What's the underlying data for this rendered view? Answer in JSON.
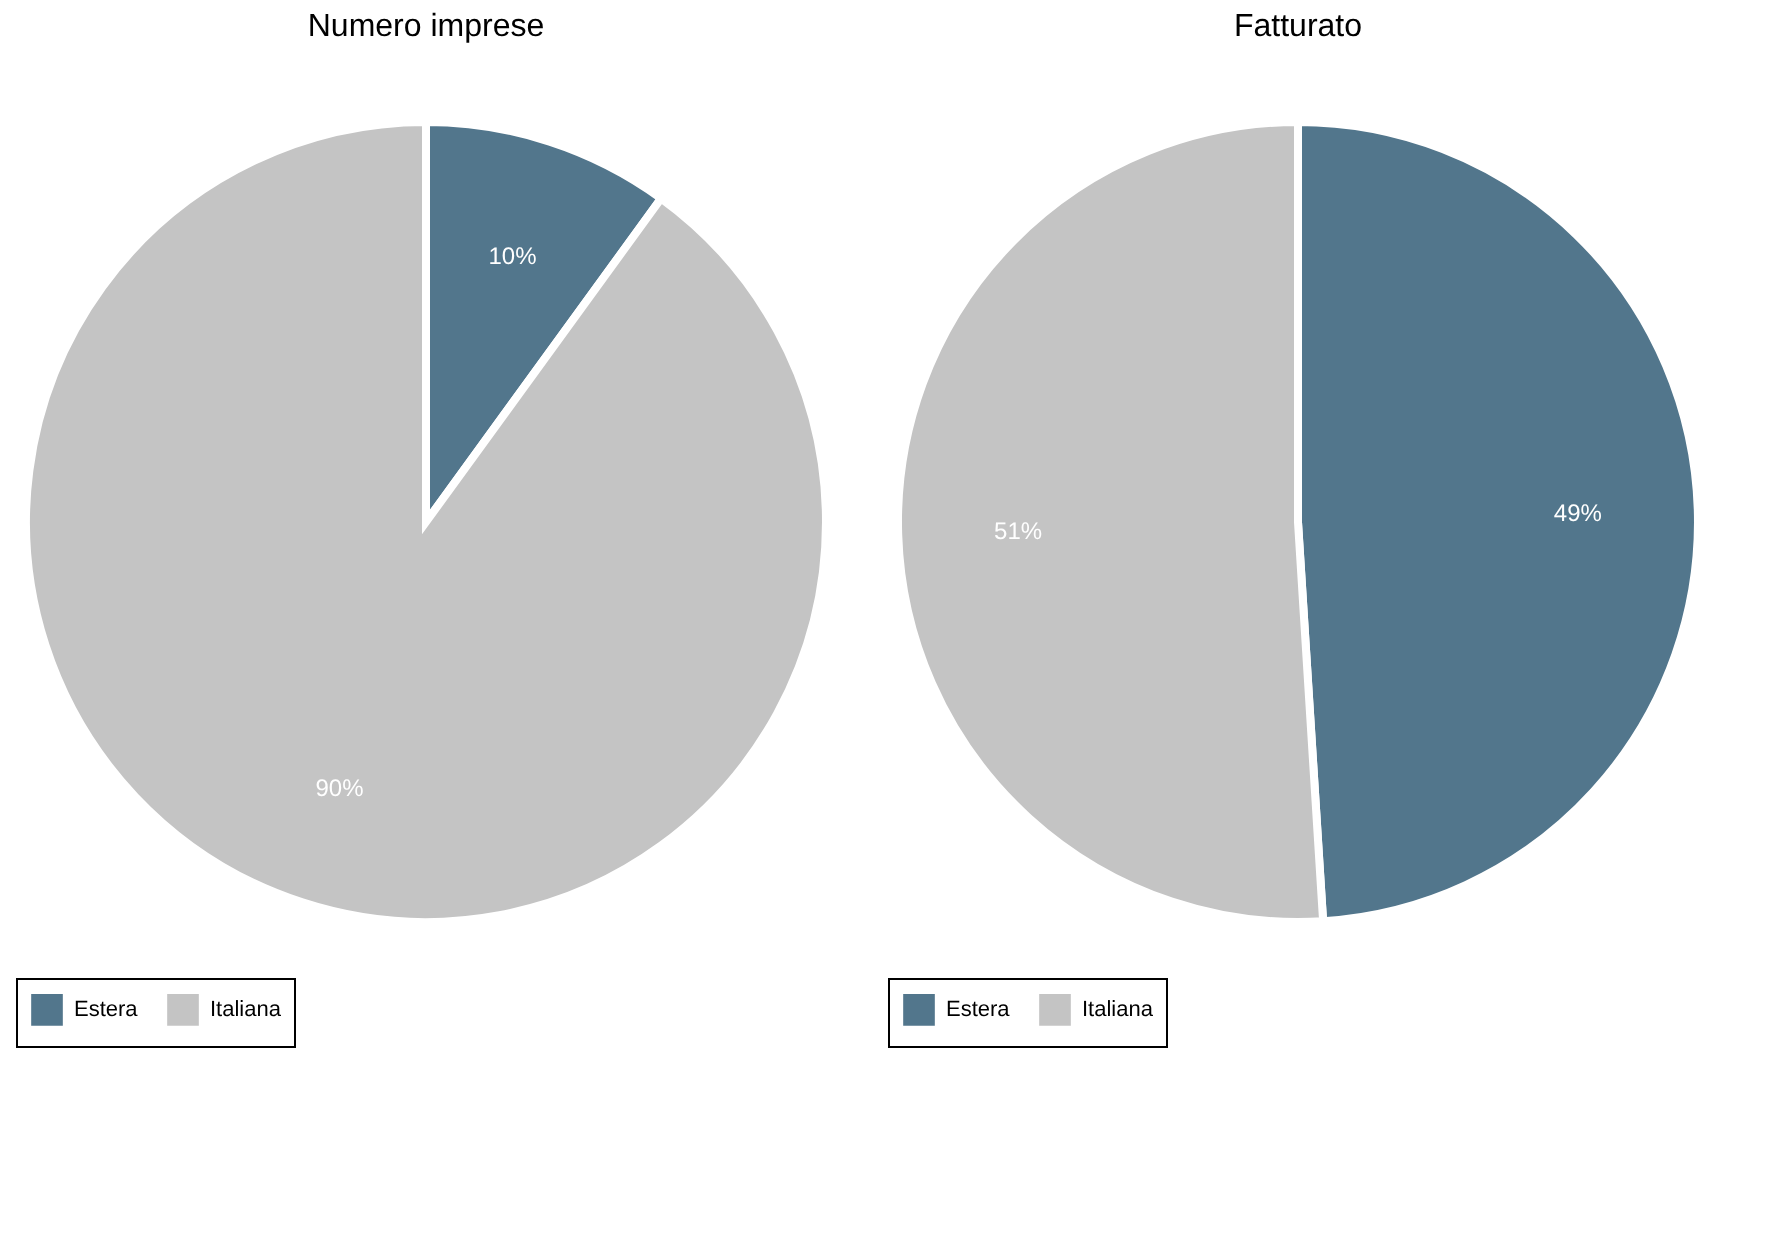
{
  "chart_data": [
    {
      "type": "pie",
      "title": "Numero imprese",
      "categories": [
        "Estera",
        "Italiana"
      ],
      "values": [
        10,
        90
      ],
      "colors": [
        "#52768c",
        "#c4c4c4"
      ],
      "value_labels": [
        "10%",
        "90%"
      ],
      "legend": "bottom"
    },
    {
      "type": "pie",
      "title": "Fatturato",
      "categories": [
        "Estera",
        "Italiana"
      ],
      "values": [
        49,
        51
      ],
      "colors": [
        "#52768c",
        "#c4c4c4"
      ],
      "value_labels": [
        "49%",
        "51%"
      ],
      "legend": "bottom"
    }
  ]
}
